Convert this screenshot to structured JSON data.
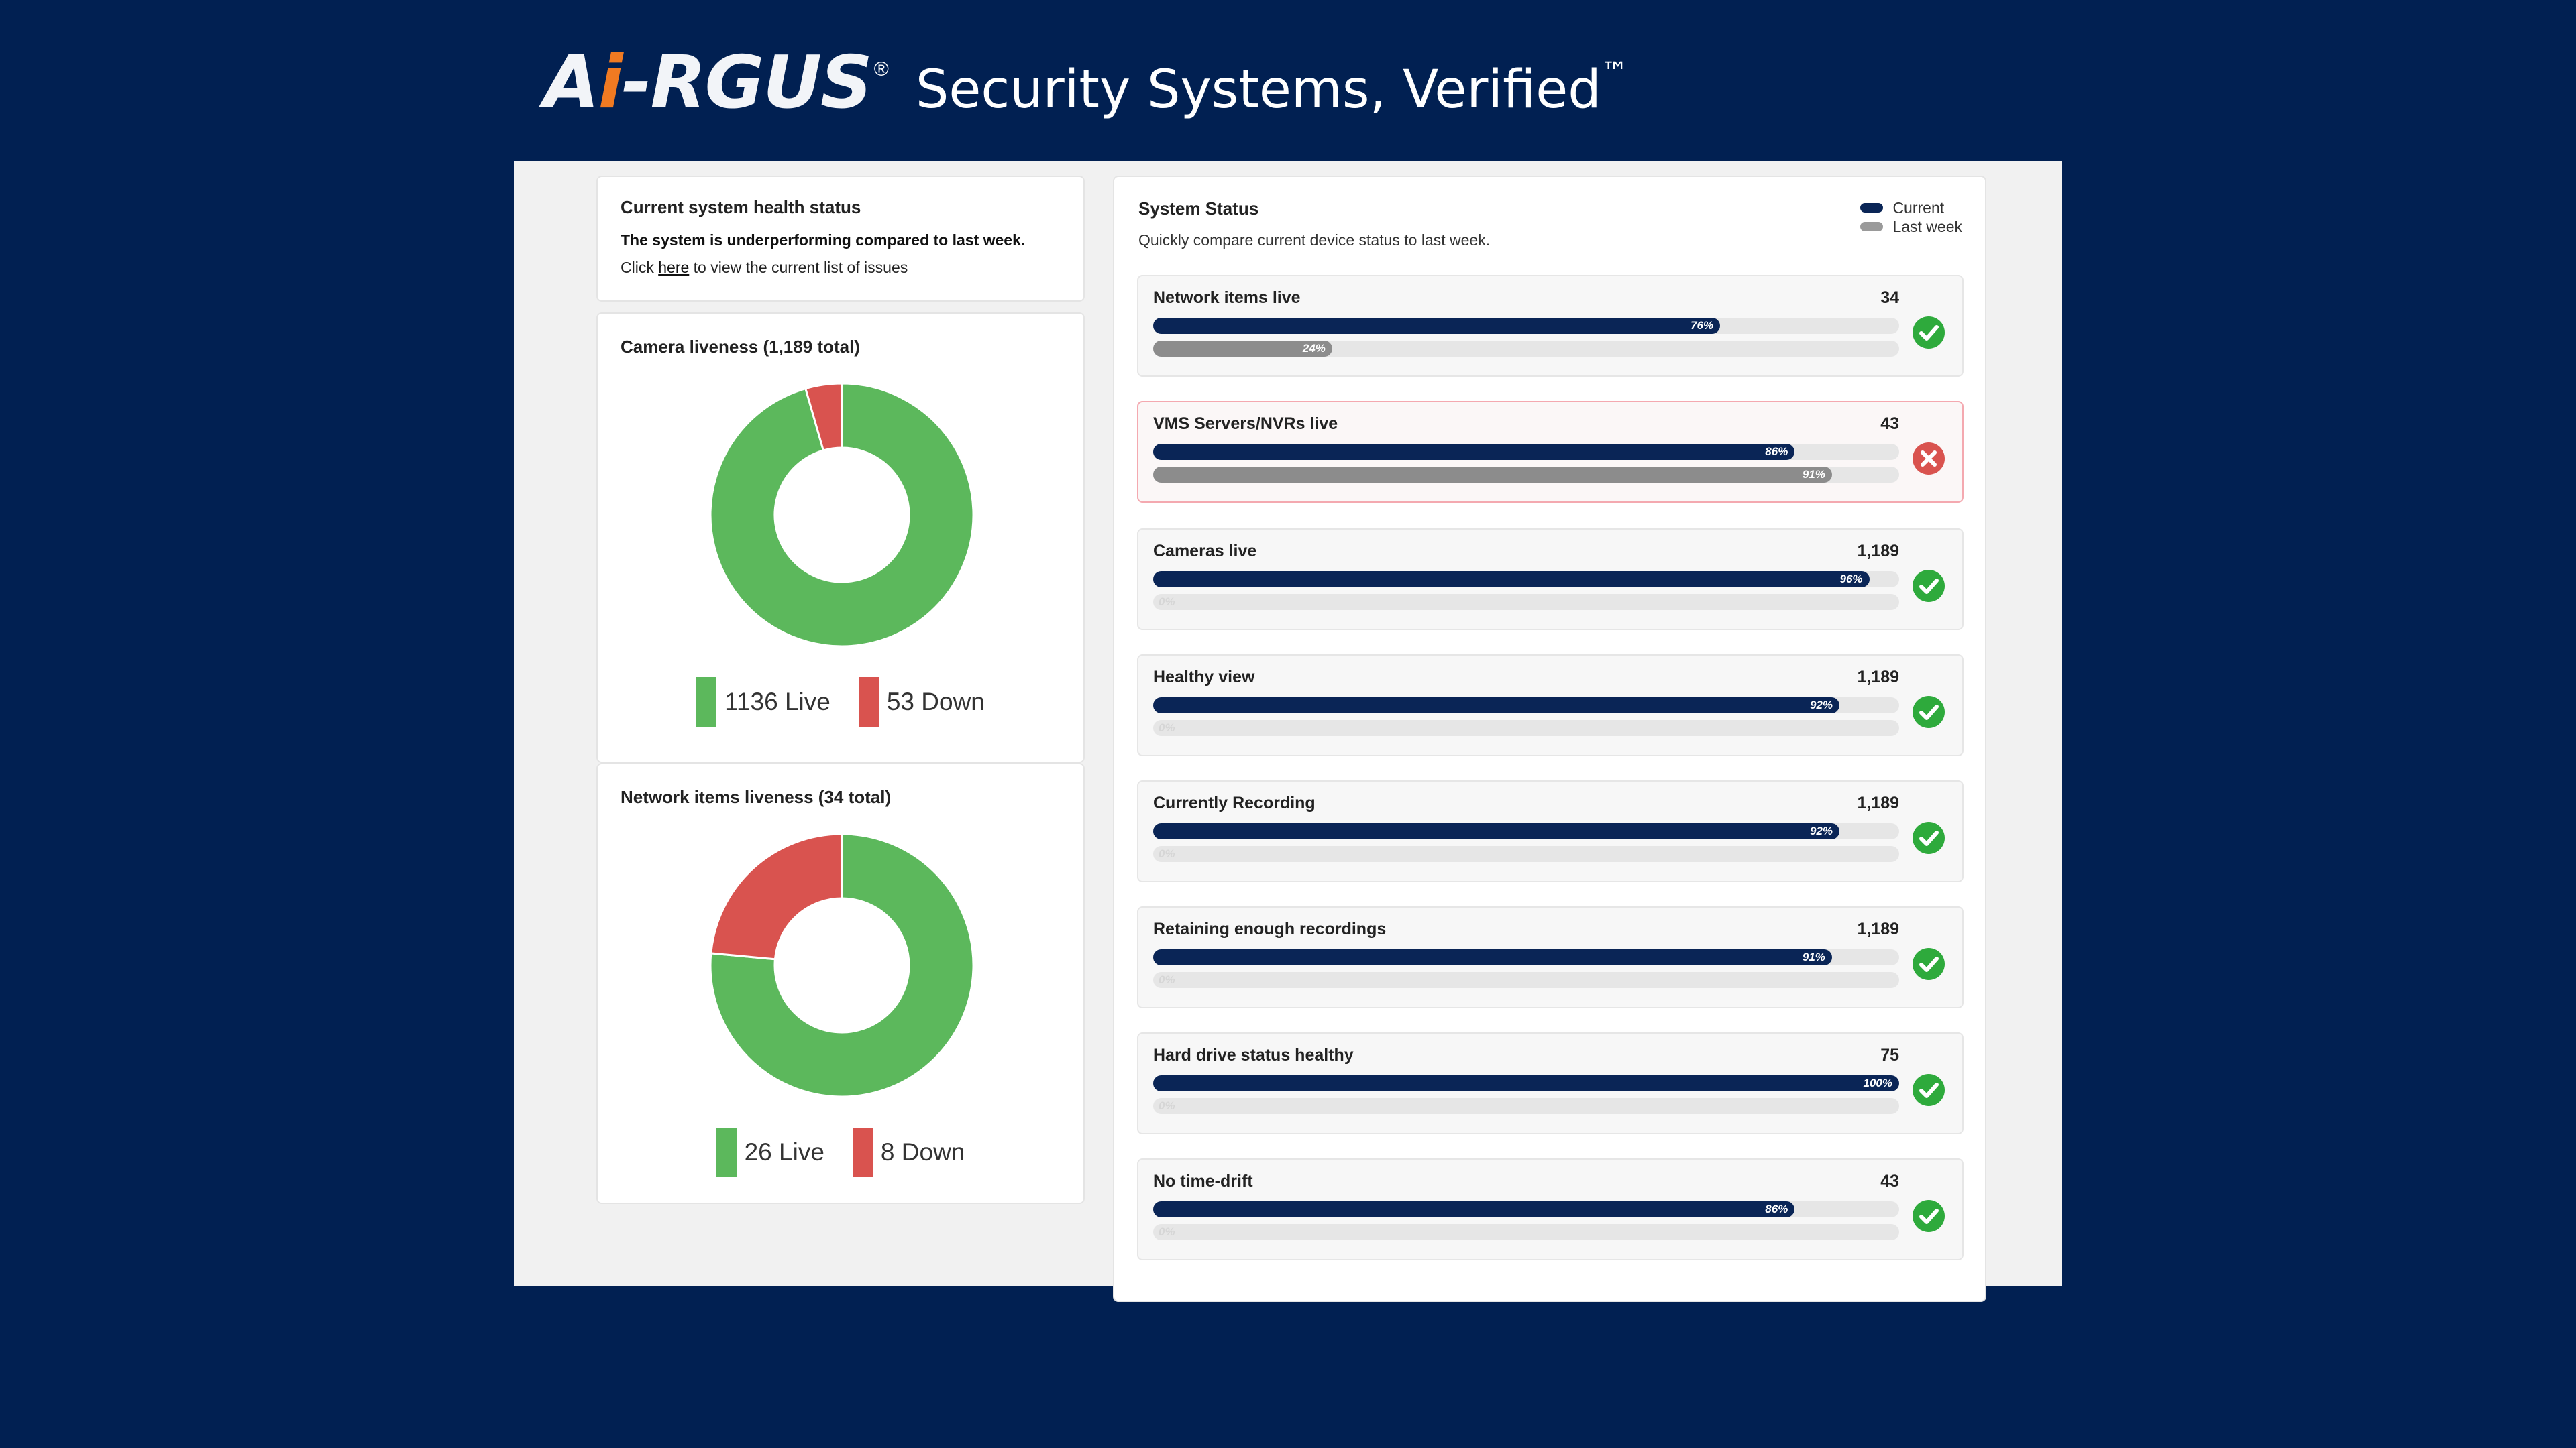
{
  "brand": {
    "logo_text_a": "A",
    "logo_text_i": "i",
    "logo_text_rest": "-RGUS",
    "logo_reg": "®",
    "tagline": "Security Systems, Verified",
    "tagline_tm": "™"
  },
  "health": {
    "title": "Current system health status",
    "message": "The system is underperforming compared to last week.",
    "cta_prefix": "Click ",
    "cta_link": "here",
    "cta_suffix": " to view the current list of issues"
  },
  "camera_liveness": {
    "title": "Camera liveness (1,189 total)",
    "live_label": "1136 Live",
    "down_label": "53 Down",
    "live": 1136,
    "down": 53
  },
  "network_liveness": {
    "title": "Network items liveness (34 total)",
    "live_label": "26 Live",
    "down_label": "8 Down",
    "live": 26,
    "down": 8
  },
  "colors": {
    "live": "#5cb85c",
    "down": "#d9534f",
    "current": "#0a2556",
    "last_week": "#8c8c8c",
    "ok": "#2eaa3c",
    "fail": "#d9534f"
  },
  "system_status": {
    "title": "System Status",
    "subtitle": "Quickly compare current device status to last week.",
    "legend_current": "Current",
    "legend_last_week": "Last week",
    "metrics": [
      {
        "label": "Network items live",
        "count": "34",
        "current": 76,
        "current_label": "76%",
        "last_week": 24,
        "last_week_label": "24%",
        "status": "ok"
      },
      {
        "label": "VMS Servers/NVRs live",
        "count": "43",
        "current": 86,
        "current_label": "86%",
        "last_week": 91,
        "last_week_label": "91%",
        "status": "fail"
      },
      {
        "label": "Cameras live",
        "count": "1,189",
        "current": 96,
        "current_label": "96%",
        "last_week": 0,
        "last_week_label": "0%",
        "status": "ok"
      },
      {
        "label": "Healthy view",
        "count": "1,189",
        "current": 92,
        "current_label": "92%",
        "last_week": 0,
        "last_week_label": "0%",
        "status": "ok"
      },
      {
        "label": "Currently Recording",
        "count": "1,189",
        "current": 92,
        "current_label": "92%",
        "last_week": 0,
        "last_week_label": "0%",
        "status": "ok"
      },
      {
        "label": "Retaining enough recordings",
        "count": "1,189",
        "current": 91,
        "current_label": "91%",
        "last_week": 0,
        "last_week_label": "0%",
        "status": "ok"
      },
      {
        "label": "Hard drive status healthy",
        "count": "75",
        "current": 100,
        "current_label": "100%",
        "last_week": 0,
        "last_week_label": "0%",
        "status": "ok"
      },
      {
        "label": "No time-drift",
        "count": "43",
        "current": 86,
        "current_label": "86%",
        "last_week": 0,
        "last_week_label": "0%",
        "status": "ok"
      }
    ]
  }
}
